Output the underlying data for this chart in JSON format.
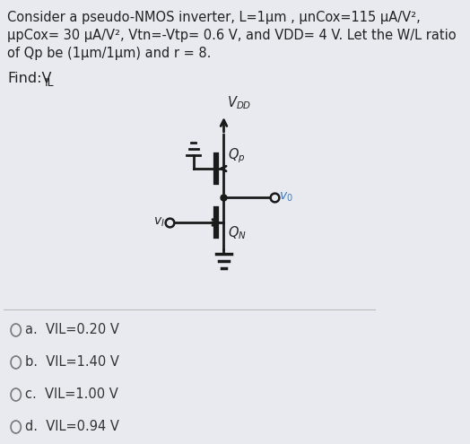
{
  "background_color": "#e8eaf0",
  "line1": "Consider a pseudo-NMOS inverter, L=1μm , μnCox=115 μA/V²,",
  "line2": "μpCox= 30 μA/V², Vtn=-Vtp= 0.6 V, and VDD= 4 V. Let the W/L ratio",
  "line3": "of Qp be (1μm/1μm) and r = 8.",
  "find_main": "Find:V",
  "find_sub": "IL",
  "vdd_label": "V",
  "vdd_sub": "DD",
  "vo_label": "v",
  "vo_sub": "0",
  "vi_label": "v",
  "vi_sub": "I",
  "qp_label": "Q",
  "qp_sub": "p",
  "qn_label": "Q",
  "qn_sub": "N",
  "options": [
    "a.  VIL=0.20 V",
    "b.  VIL=1.40 V",
    "c.  VIL=1.00 V",
    "d.  VIL=0.94 V"
  ],
  "text_color": "#222222",
  "circuit_color": "#1a1a1a",
  "vo_color": "#3a7abf",
  "vi_color": "#333333",
  "option_color": "#333333",
  "divider_color": "#bbbbbb"
}
